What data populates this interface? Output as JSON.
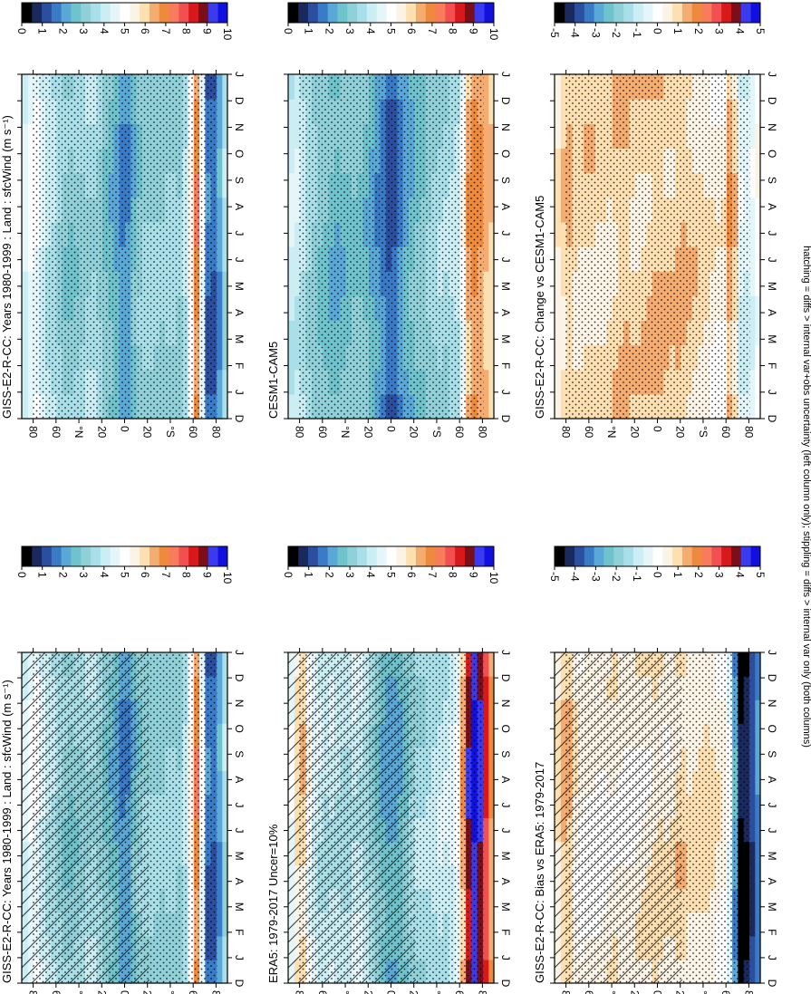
{
  "footnote": "hatching = diffs > internal var+obs uncertainty (left column only); stippling = diffs > internal var only (both columns)",
  "chart_data": [
    {
      "id": "p1",
      "type": "heatmap",
      "title": "GISS-E2-R-CC: Years 1980-1999 : Land : sfcWind (m s⁻¹)",
      "x_ticks": [
        "D",
        "J",
        "F",
        "M",
        "A",
        "M",
        "J",
        "J",
        "A",
        "S",
        "O",
        "N",
        "D",
        "J"
      ],
      "y_ticks": [
        "80",
        "60",
        "°N",
        "20",
        "0",
        "20",
        "°S",
        "60",
        "80"
      ],
      "colorbar": {
        "labels": [
          "10",
          "9",
          "8",
          "7",
          "6",
          "5",
          "4",
          "3",
          "2",
          "1",
          "0"
        ],
        "colors": [
          "#1010e0",
          "#3a3aee",
          "#7a0f1a",
          "#d7191c",
          "#f25050",
          "#f87b5c",
          "#ee8a3e",
          "#f5ac70",
          "#fce0b2",
          "#fbf4e6",
          "#ffffff",
          "#e4f6fa",
          "#cbeef5",
          "#a8dfe8",
          "#8fd0d9",
          "#6fc3cc",
          "#5aa8d8",
          "#3a7bc8",
          "#2b4f9e",
          "#1a2a5e",
          "#000000"
        ]
      },
      "lat_profile": [
        [
          -90,
          4.2
        ],
        [
          -80,
          1.2
        ],
        [
          -70,
          1.5
        ],
        [
          -65,
          8
        ],
        [
          -60,
          6
        ],
        [
          -50,
          3
        ],
        [
          -40,
          3.5
        ],
        [
          -30,
          3
        ],
        [
          -20,
          3.4
        ],
        [
          -10,
          2.8
        ],
        [
          0,
          1.6
        ],
        [
          10,
          2.4
        ],
        [
          20,
          3
        ],
        [
          30,
          3.6
        ],
        [
          40,
          3.1
        ],
        [
          50,
          2.9
        ],
        [
          60,
          3.5
        ],
        [
          70,
          4
        ],
        [
          80,
          5
        ],
        [
          90,
          4
        ]
      ]
    },
    {
      "id": "p2",
      "type": "heatmap",
      "title": "GISS-E2-R-CC: Years 1980-1999 : Land : sfcWind (m s⁻¹)",
      "x_ticks": [
        "D",
        "J",
        "F",
        "M",
        "A",
        "M",
        "J",
        "J",
        "A",
        "S",
        "O",
        "N",
        "D",
        "J"
      ],
      "y_ticks": [
        "80",
        "60",
        "°N",
        "20",
        "0",
        "20",
        "°S",
        "60",
        "80"
      ],
      "colorbar": {
        "labels": [
          "10",
          "9",
          "8",
          "7",
          "6",
          "5",
          "4",
          "3",
          "2",
          "1",
          "0"
        ],
        "colors": [
          "#1010e0",
          "#3a3aee",
          "#7a0f1a",
          "#d7191c",
          "#f25050",
          "#f87b5c",
          "#ee8a3e",
          "#f5ac70",
          "#fce0b2",
          "#fbf4e6",
          "#ffffff",
          "#e4f6fa",
          "#cbeef5",
          "#a8dfe8",
          "#8fd0d9",
          "#6fc3cc",
          "#5aa8d8",
          "#3a7bc8",
          "#2b4f9e",
          "#1a2a5e",
          "#000000"
        ]
      },
      "lat_profile": [
        [
          -90,
          4.2
        ],
        [
          -80,
          1.2
        ],
        [
          -70,
          1.5
        ],
        [
          -65,
          8
        ],
        [
          -60,
          6
        ],
        [
          -50,
          3
        ],
        [
          -40,
          3.5
        ],
        [
          -30,
          3
        ],
        [
          -20,
          3.4
        ],
        [
          -10,
          2.8
        ],
        [
          0,
          1.6
        ],
        [
          10,
          2.4
        ],
        [
          20,
          3
        ],
        [
          30,
          3.6
        ],
        [
          40,
          3.1
        ],
        [
          50,
          2.9
        ],
        [
          60,
          3.5
        ],
        [
          70,
          4
        ],
        [
          80,
          5
        ],
        [
          90,
          4
        ]
      ]
    },
    {
      "id": "p3",
      "type": "heatmap",
      "title": "ERA5: 1979-2017 Uncer=10%",
      "x_ticks": [
        "D",
        "J",
        "F",
        "M",
        "A",
        "M",
        "J",
        "J",
        "A",
        "S",
        "O",
        "N",
        "D",
        "J"
      ],
      "y_ticks": [
        "80",
        "60",
        "°N",
        "20",
        "0",
        "20",
        "°S",
        "60",
        "80"
      ],
      "colorbar": {
        "labels": [
          "10",
          "9",
          "8",
          "7",
          "6",
          "5",
          "4",
          "3",
          "2",
          "1",
          "0"
        ],
        "colors": [
          "#1010e0",
          "#3a3aee",
          "#7a0f1a",
          "#d7191c",
          "#f25050",
          "#f87b5c",
          "#ee8a3e",
          "#f5ac70",
          "#fce0b2",
          "#fbf4e6",
          "#ffffff",
          "#e4f6fa",
          "#cbeef5",
          "#a8dfe8",
          "#8fd0d9",
          "#6fc3cc",
          "#5aa8d8",
          "#3a7bc8",
          "#2b4f9e",
          "#1a2a5e",
          "#000000"
        ]
      },
      "lat_profile": [
        [
          -90,
          6
        ],
        [
          -80,
          9
        ],
        [
          -70,
          10
        ],
        [
          -65,
          8
        ],
        [
          -60,
          5
        ],
        [
          -50,
          4
        ],
        [
          -40,
          4
        ],
        [
          -30,
          3.5
        ],
        [
          -20,
          3.5
        ],
        [
          -10,
          2.5
        ],
        [
          0,
          2
        ],
        [
          10,
          2.6
        ],
        [
          20,
          3.5
        ],
        [
          30,
          4.2
        ],
        [
          40,
          3.5
        ],
        [
          50,
          4
        ],
        [
          60,
          3.8
        ],
        [
          70,
          4.5
        ],
        [
          80,
          6.5
        ],
        [
          90,
          4
        ]
      ]
    },
    {
      "id": "p4",
      "type": "heatmap",
      "title": "CESM1-CAM5",
      "x_ticks": [
        "D",
        "J",
        "F",
        "M",
        "A",
        "M",
        "J",
        "J",
        "A",
        "S",
        "O",
        "N",
        "D",
        "J"
      ],
      "y_ticks": [
        "80",
        "60",
        "°N",
        "20",
        "0",
        "20",
        "°S",
        "60",
        "80"
      ],
      "colorbar": {
        "labels": [
          "10",
          "9",
          "8",
          "7",
          "6",
          "5",
          "4",
          "3",
          "2",
          "1",
          "0"
        ],
        "colors": [
          "#1010e0",
          "#3a3aee",
          "#7a0f1a",
          "#d7191c",
          "#f25050",
          "#f87b5c",
          "#ee8a3e",
          "#f5ac70",
          "#fce0b2",
          "#fbf4e6",
          "#ffffff",
          "#e4f6fa",
          "#cbeef5",
          "#a8dfe8",
          "#8fd0d9",
          "#6fc3cc",
          "#5aa8d8",
          "#3a7bc8",
          "#2b4f9e",
          "#1a2a5e",
          "#000000"
        ]
      },
      "lat_profile": [
        [
          -90,
          6
        ],
        [
          -80,
          6.5
        ],
        [
          -70,
          7
        ],
        [
          -65,
          6
        ],
        [
          -60,
          4
        ],
        [
          -50,
          3.5
        ],
        [
          -40,
          3.5
        ],
        [
          -30,
          3
        ],
        [
          -20,
          2.6
        ],
        [
          -10,
          2
        ],
        [
          0,
          1
        ],
        [
          10,
          1.8
        ],
        [
          20,
          2.4
        ],
        [
          30,
          3
        ],
        [
          40,
          2.6
        ],
        [
          50,
          2.4
        ],
        [
          60,
          2.8
        ],
        [
          70,
          3.2
        ],
        [
          80,
          4
        ],
        [
          90,
          4
        ]
      ]
    },
    {
      "id": "p5",
      "type": "heatmap",
      "title": "GISS-E2-R-CC: Bias vs ERA5: 1979-2017",
      "x_ticks": [
        "D",
        "J",
        "F",
        "M",
        "A",
        "M",
        "J",
        "J",
        "A",
        "S",
        "O",
        "N",
        "D",
        "J"
      ],
      "y_ticks": [
        "80",
        "60",
        "°N",
        "20",
        "0",
        "20",
        "°S",
        "60",
        "80"
      ],
      "colorbar": {
        "labels": [
          "5",
          "4",
          "3",
          "2",
          "1",
          "0",
          "-1",
          "-2",
          "-3",
          "-4",
          "-5"
        ],
        "colors": [
          "#1010e0",
          "#3a3aee",
          "#7a0f1a",
          "#d7191c",
          "#f25050",
          "#f87b5c",
          "#ee8a3e",
          "#f5ac70",
          "#fce0b2",
          "#fbf4e6",
          "#ffffff",
          "#e4f6fa",
          "#cbeef5",
          "#a8dfe8",
          "#8fd0d9",
          "#6fc3cc",
          "#5aa8d8",
          "#3a7bc8",
          "#2b4f9e",
          "#1a2a5e",
          "#000000"
        ]
      },
      "lat_profile": [
        [
          -90,
          -3
        ],
        [
          -80,
          -4.5
        ],
        [
          -70,
          -5
        ],
        [
          -65,
          -1
        ],
        [
          -60,
          0.3
        ],
        [
          -50,
          0.6
        ],
        [
          -40,
          1
        ],
        [
          -30,
          0.6
        ],
        [
          -20,
          1.1
        ],
        [
          -10,
          0.5
        ],
        [
          0,
          0.8
        ],
        [
          10,
          0.5
        ],
        [
          20,
          0.4
        ],
        [
          30,
          0.3
        ],
        [
          40,
          0.5
        ],
        [
          50,
          0.2
        ],
        [
          60,
          0.3
        ],
        [
          70,
          0.2
        ],
        [
          80,
          1.5
        ],
        [
          90,
          0.5
        ]
      ]
    },
    {
      "id": "p6",
      "type": "heatmap",
      "title": "GISS-E2-R-CC: Change vs CESM1-CAM5",
      "x_ticks": [
        "D",
        "J",
        "F",
        "M",
        "A",
        "M",
        "J",
        "J",
        "A",
        "S",
        "O",
        "N",
        "D",
        "J"
      ],
      "y_ticks": [
        "80",
        "60",
        "°N",
        "20",
        "0",
        "20",
        "°S",
        "60",
        "80"
      ],
      "colorbar": {
        "labels": [
          "5",
          "4",
          "3",
          "2",
          "1",
          "0",
          "-1",
          "-2",
          "-3",
          "-4",
          "-5"
        ],
        "colors": [
          "#1010e0",
          "#3a3aee",
          "#7a0f1a",
          "#d7191c",
          "#f25050",
          "#f87b5c",
          "#ee8a3e",
          "#f5ac70",
          "#fce0b2",
          "#fbf4e6",
          "#ffffff",
          "#e4f6fa",
          "#cbeef5",
          "#a8dfe8",
          "#8fd0d9",
          "#6fc3cc",
          "#5aa8d8",
          "#3a7bc8",
          "#2b4f9e",
          "#1a2a5e",
          "#000000"
        ]
      },
      "lat_profile": [
        [
          -90,
          0.3
        ],
        [
          -80,
          -0.8
        ],
        [
          -70,
          -0.5
        ],
        [
          -65,
          2.5
        ],
        [
          -60,
          0.5
        ],
        [
          -50,
          0.4
        ],
        [
          -40,
          0.8
        ],
        [
          -30,
          1
        ],
        [
          -20,
          1.2
        ],
        [
          -10,
          1
        ],
        [
          0,
          1.2
        ],
        [
          10,
          1
        ],
        [
          20,
          0.9
        ],
        [
          30,
          1.2
        ],
        [
          40,
          0.9
        ],
        [
          50,
          0.8
        ],
        [
          60,
          1
        ],
        [
          70,
          0.8
        ],
        [
          80,
          1.2
        ],
        [
          90,
          0.4
        ]
      ]
    }
  ]
}
